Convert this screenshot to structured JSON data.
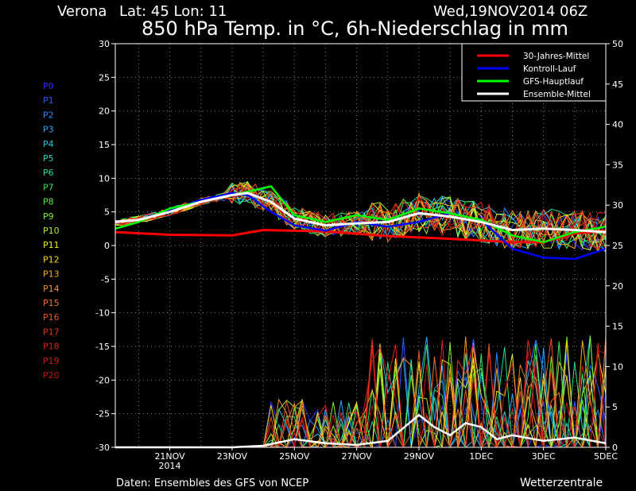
{
  "header": {
    "location": "Verona",
    "coords": "Lat: 45 Lon: 11",
    "datetime": "Wed,19NOV2014 06Z",
    "title": "850 hPa Temp. in °C, 6h-Niederschlag in mm"
  },
  "footer": {
    "source": "Daten: Ensembles des GFS von NCEP",
    "brand": "Wetterzentrale"
  },
  "members": [
    "P0",
    "P1",
    "P2",
    "P3",
    "P4",
    "P5",
    "P6",
    "P7",
    "P8",
    "P9",
    "P10",
    "P11",
    "P12",
    "P13",
    "P14",
    "P15",
    "P16",
    "P17",
    "P18",
    "P19",
    "P20"
  ],
  "member_colors": [
    "#3030ff",
    "#2a5cff",
    "#2a88ff",
    "#2aa8ff",
    "#22c8e8",
    "#22d8c0",
    "#22e090",
    "#30e860",
    "#50f040",
    "#80f030",
    "#b0f020",
    "#e8f020",
    "#f8d820",
    "#f8b020",
    "#f89020",
    "#f87020",
    "#f05020",
    "#e83020",
    "#e02020",
    "#d01818",
    "#c01010"
  ],
  "chart_data": {
    "type": "line",
    "x_ticks": [
      {
        "label": "21NOV",
        "sub": "2014",
        "t": 48
      },
      {
        "label": "23NOV",
        "sub": "",
        "t": 96
      },
      {
        "label": "25NOV",
        "sub": "",
        "t": 144
      },
      {
        "label": "27NOV",
        "sub": "",
        "t": 192
      },
      {
        "label": "29NOV",
        "sub": "",
        "t": 240
      },
      {
        "label": "1DEC",
        "sub": "",
        "t": 288
      },
      {
        "label": "3DEC",
        "sub": "",
        "t": 336
      },
      {
        "label": "5DEC",
        "sub": "",
        "t": 384
      }
    ],
    "xlim": [
      6,
      384
    ],
    "ylim_left": [
      -30,
      30
    ],
    "yticks_left": [
      30,
      25,
      20,
      15,
      10,
      5,
      0,
      -5,
      -10,
      -15,
      -20,
      -25,
      -30
    ],
    "ylim_right": [
      0,
      50
    ],
    "yticks_right": [
      50,
      45,
      40,
      35,
      30,
      25,
      20,
      15,
      10,
      5,
      0
    ],
    "grid": true,
    "legend_position": "top-right",
    "series": [
      {
        "name": "30-Jahres-Mittel",
        "color": "#ff0000",
        "width": 3,
        "x": [
          6,
          48,
          96,
          120,
          168,
          216,
          264,
          312,
          336,
          360,
          384
        ],
        "y": [
          2.0,
          1.6,
          1.5,
          2.3,
          2.1,
          1.4,
          1.0,
          0.5,
          0.5,
          1.8,
          2.2
        ]
      },
      {
        "name": "Kontroll-Lauf",
        "color": "#0000ff",
        "width": 2.5,
        "x": [
          6,
          24,
          48,
          72,
          96,
          108,
          126,
          144,
          168,
          192,
          216,
          240,
          264,
          288,
          312,
          336,
          360,
          384
        ],
        "y": [
          3.5,
          3.8,
          5.2,
          6.8,
          7.8,
          7.5,
          5.0,
          3.0,
          2.2,
          3.5,
          2.8,
          3.5,
          4.8,
          3.8,
          -0.5,
          -1.8,
          -2.0,
          -0.5
        ]
      },
      {
        "name": "GFS-Hauptlauf",
        "color": "#00ff00",
        "width": 2.5,
        "x": [
          6,
          24,
          48,
          72,
          96,
          108,
          126,
          144,
          168,
          192,
          216,
          240,
          264,
          288,
          312,
          336,
          360,
          384
        ],
        "y": [
          2.5,
          3.5,
          5.5,
          6.5,
          7.5,
          8.0,
          8.8,
          4.5,
          3.5,
          4.5,
          3.8,
          5.5,
          4.8,
          3.8,
          1.5,
          0.5,
          2.0,
          2.8
        ]
      },
      {
        "name": "Ensemble-Mittel",
        "color": "#ffffff",
        "width": 3,
        "x": [
          6,
          24,
          48,
          72,
          96,
          108,
          126,
          144,
          168,
          192,
          216,
          240,
          264,
          288,
          312,
          336,
          360,
          384
        ],
        "y": [
          3.5,
          3.8,
          5.0,
          6.5,
          7.5,
          7.8,
          6.5,
          4.0,
          3.0,
          3.3,
          3.5,
          4.8,
          4.3,
          3.5,
          2.3,
          2.5,
          2.3,
          2.0
        ]
      }
    ],
    "precip_mean": {
      "x": [
        6,
        96,
        120,
        144,
        168,
        192,
        216,
        240,
        252,
        264,
        276,
        288,
        300,
        312,
        336,
        360,
        384
      ],
      "y": [
        0,
        0,
        0.2,
        1.0,
        0.5,
        0.3,
        0.8,
        4.0,
        2.5,
        1.5,
        3.0,
        2.5,
        1.0,
        1.5,
        0.8,
        1.2,
        0.5
      ]
    }
  }
}
